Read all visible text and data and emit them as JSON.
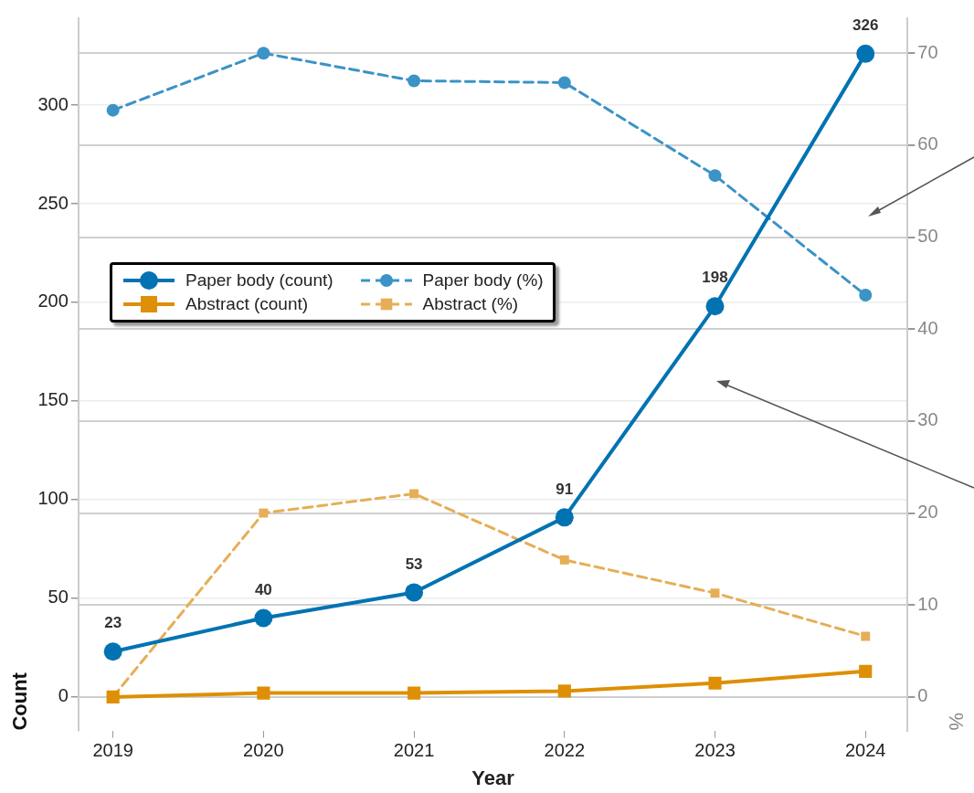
{
  "chart_data": {
    "type": "line",
    "xlabel": "Year",
    "ylabel": "Count",
    "y2label": "%",
    "x": [
      2019,
      2020,
      2021,
      2022,
      2023,
      2024
    ],
    "xlim": [
      2018.77,
      2024.28
    ],
    "xticks": [
      2019,
      2020,
      2021,
      2022,
      2023,
      2024
    ],
    "ylim": [
      -17,
      344
    ],
    "yticks": [
      0,
      50,
      100,
      150,
      200,
      250,
      300
    ],
    "y2lim": [
      -3.65,
      73.8
    ],
    "y2ticks": [
      0,
      10,
      20,
      30,
      40,
      50,
      60,
      70
    ],
    "grid": "y",
    "legend": "center left",
    "series": [
      {
        "name": "Paper body (count)",
        "color": "#0173b2",
        "values": [
          23,
          40,
          53,
          91,
          198,
          326
        ],
        "marker": "circle",
        "line_style": "solid",
        "value_labels": [
          "23",
          "40",
          "53",
          "91",
          "198",
          "326"
        ]
      },
      {
        "name": "Abstract (count)",
        "color": "#de8f05",
        "values": [
          0,
          2,
          2,
          3,
          7,
          13
        ],
        "marker": "square",
        "line_style": "solid"
      },
      {
        "name": "Paper body (%)",
        "color": "#3b93c6",
        "values": [
          63.8,
          70.0,
          67.0,
          66.8,
          56.7,
          43.7
        ],
        "axis": "y2",
        "marker": "circle",
        "line_style": "dashed"
      },
      {
        "name": "Abstract (%)",
        "color": "#e6ae55",
        "values": [
          0,
          20.0,
          22.1,
          14.9,
          11.3,
          6.6
        ],
        "axis": "y2",
        "marker": "square",
        "line_style": "dashed"
      }
    ]
  }
}
